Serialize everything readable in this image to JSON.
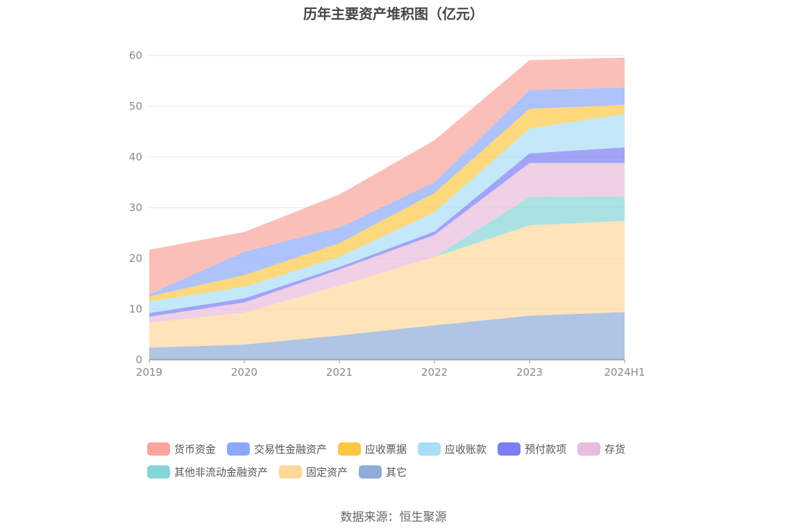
{
  "title": "历年主要资产堆积图（亿元）",
  "source": "数据来源：恒生聚源",
  "chart_data": {
    "type": "area",
    "stacked": true,
    "categories": [
      "2019",
      "2020",
      "2021",
      "2022",
      "2023",
      "2024H1"
    ],
    "y_ticks": [
      "0",
      "10",
      "20",
      "30",
      "40",
      "50",
      "60"
    ],
    "ylim": [
      0,
      60
    ],
    "grid": true,
    "legend_position": "bottom",
    "series": [
      {
        "name": "其它",
        "color": "#8fabd8",
        "values": [
          2.4,
          3.0,
          4.8,
          6.8,
          8.7,
          9.4
        ]
      },
      {
        "name": "固定资产",
        "color": "#fdd89a",
        "values": [
          4.9,
          6.3,
          9.8,
          13.5,
          17.8,
          18.0
        ]
      },
      {
        "name": "其他非流动金融资产",
        "color": "#86d5d7",
        "values": [
          0.0,
          0.0,
          0.0,
          0.0,
          5.6,
          4.8
        ]
      },
      {
        "name": "存货",
        "color": "#e8bcdc",
        "values": [
          1.2,
          2.0,
          3.2,
          4.3,
          6.7,
          6.6
        ]
      },
      {
        "name": "预付款项",
        "color": "#7b7ef5",
        "values": [
          0.7,
          0.8,
          0.5,
          0.7,
          1.9,
          3.1
        ]
      },
      {
        "name": "应收账款",
        "color": "#a9def7",
        "values": [
          2.3,
          2.3,
          2.0,
          3.8,
          4.9,
          6.6
        ]
      },
      {
        "name": "应收票据",
        "color": "#fdc744",
        "values": [
          1.0,
          2.3,
          2.7,
          3.8,
          3.9,
          1.8
        ]
      },
      {
        "name": "交易性金融资产",
        "color": "#8aa9f8",
        "values": [
          0.4,
          4.6,
          3.1,
          2.1,
          3.7,
          3.4
        ]
      },
      {
        "name": "货币资金",
        "color": "#f9a49c",
        "values": [
          8.8,
          3.9,
          6.5,
          8.3,
          5.9,
          5.9
        ]
      }
    ]
  },
  "legend": {
    "row1": [
      "货币资金",
      "交易性金融资产",
      "应收票据",
      "应收账款",
      "预付款项",
      "存货"
    ],
    "row2": [
      "其他非流动金融资产",
      "固定资产",
      "其它"
    ]
  }
}
